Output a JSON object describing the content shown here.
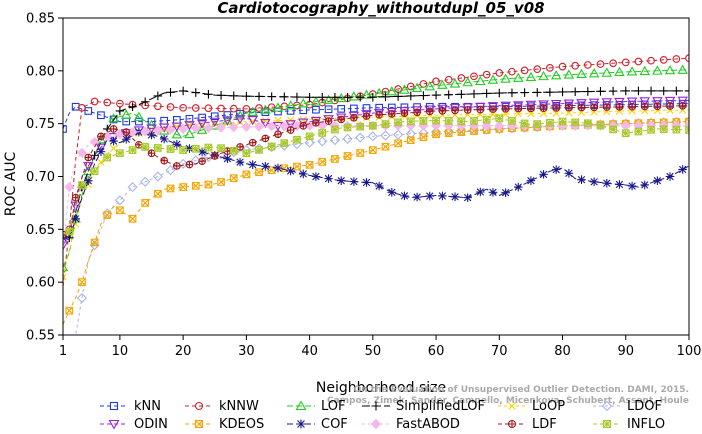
{
  "chart_data": {
    "type": "line",
    "title": "Cardiotocography_withoutdupl_05_v08",
    "xlabel": "Neighborhood size",
    "ylabel": "ROC AUC",
    "xlim": [
      1,
      100
    ],
    "ylim": [
      0.55,
      0.85
    ],
    "xticks": [
      1,
      10,
      20,
      30,
      40,
      50,
      60,
      70,
      80,
      90,
      100
    ],
    "yticks": [
      0.55,
      0.6,
      0.65,
      0.7,
      0.75,
      0.8,
      0.85
    ],
    "xtick_labels": [
      "1",
      "10",
      "20",
      "30",
      "40",
      "50",
      "60",
      "70",
      "80",
      "90",
      "100"
    ],
    "ytick_labels": [
      "0.55",
      "0.60",
      "0.65",
      "0.70",
      "0.75",
      "0.80",
      "0.85"
    ],
    "grid": false,
    "legend_position": "bottom",
    "watermark": [
      "Campos, Zimek, Sander, Campello, Micenkova, Schubert, Assent, Houle",
      "On the Evaluation of Unsupervised Outlier Detection. DAMI, 2015."
    ],
    "series": [
      {
        "name": "kNN",
        "color": "#1f3ad8",
        "marker": "square",
        "dash": "4,3",
        "points": [
          [
            1,
            0.745
          ],
          [
            2,
            0.76
          ],
          [
            3,
            0.766
          ],
          [
            5,
            0.762
          ],
          [
            8,
            0.756
          ],
          [
            10,
            0.752
          ],
          [
            15,
            0.752
          ],
          [
            20,
            0.754
          ],
          [
            30,
            0.76
          ],
          [
            40,
            0.763
          ],
          [
            50,
            0.765
          ],
          [
            60,
            0.766
          ],
          [
            70,
            0.766
          ],
          [
            80,
            0.767
          ],
          [
            90,
            0.768
          ],
          [
            100,
            0.769
          ]
        ]
      },
      {
        "name": "kNNW",
        "color": "#d0202a",
        "marker": "circle",
        "dash": "4,3",
        "points": [
          [
            1,
            0.596
          ],
          [
            2,
            0.65
          ],
          [
            3,
            0.715
          ],
          [
            4,
            0.765
          ],
          [
            6,
            0.771
          ],
          [
            8,
            0.77
          ],
          [
            12,
            0.768
          ],
          [
            20,
            0.765
          ],
          [
            30,
            0.764
          ],
          [
            40,
            0.768
          ],
          [
            50,
            0.778
          ],
          [
            60,
            0.79
          ],
          [
            70,
            0.798
          ],
          [
            80,
            0.804
          ],
          [
            90,
            0.808
          ],
          [
            100,
            0.812
          ]
        ]
      },
      {
        "name": "LOF",
        "color": "#22cc22",
        "marker": "triangle",
        "dash": "6,3",
        "points": [
          [
            1,
            0.614
          ],
          [
            2,
            0.628
          ],
          [
            3,
            0.66
          ],
          [
            5,
            0.705
          ],
          [
            7,
            0.735
          ],
          [
            9,
            0.755
          ],
          [
            12,
            0.76
          ],
          [
            16,
            0.745
          ],
          [
            20,
            0.738
          ],
          [
            25,
            0.748
          ],
          [
            30,
            0.76
          ],
          [
            40,
            0.77
          ],
          [
            50,
            0.778
          ],
          [
            60,
            0.786
          ],
          [
            70,
            0.792
          ],
          [
            80,
            0.796
          ],
          [
            90,
            0.799
          ],
          [
            100,
            0.801
          ]
        ]
      },
      {
        "name": "SimplifiedLOF",
        "color": "#000000",
        "marker": "plus",
        "dash": "8,3",
        "points": [
          [
            1,
            0.645
          ],
          [
            2,
            0.642
          ],
          [
            4,
            0.69
          ],
          [
            6,
            0.72
          ],
          [
            8,
            0.745
          ],
          [
            10,
            0.762
          ],
          [
            13,
            0.768
          ],
          [
            17,
            0.779
          ],
          [
            20,
            0.781
          ],
          [
            25,
            0.777
          ],
          [
            30,
            0.776
          ],
          [
            40,
            0.775
          ],
          [
            50,
            0.775
          ],
          [
            60,
            0.777
          ],
          [
            70,
            0.779
          ],
          [
            80,
            0.78
          ],
          [
            90,
            0.781
          ],
          [
            100,
            0.781
          ]
        ]
      },
      {
        "name": "LoOP",
        "color": "#ffd200",
        "marker": "x",
        "dash": "3,3",
        "points": [
          [
            1,
            0.605
          ],
          [
            2,
            0.63
          ],
          [
            4,
            0.68
          ],
          [
            6,
            0.705
          ],
          [
            8,
            0.722
          ],
          [
            12,
            0.74
          ],
          [
            20,
            0.748
          ],
          [
            30,
            0.752
          ],
          [
            40,
            0.754
          ],
          [
            50,
            0.756
          ],
          [
            60,
            0.758
          ],
          [
            70,
            0.759
          ],
          [
            80,
            0.76
          ],
          [
            90,
            0.762
          ],
          [
            100,
            0.763
          ]
        ]
      },
      {
        "name": "LDOF",
        "color": "#aab4e8",
        "marker": "diamond",
        "dash": "3,3",
        "points": [
          [
            1,
            0.54
          ],
          [
            3,
            0.55
          ],
          [
            5,
            0.62
          ],
          [
            8,
            0.665
          ],
          [
            12,
            0.69
          ],
          [
            16,
            0.7
          ],
          [
            20,
            0.712
          ],
          [
            25,
            0.72
          ],
          [
            30,
            0.725
          ],
          [
            40,
            0.732
          ],
          [
            50,
            0.738
          ],
          [
            60,
            0.742
          ],
          [
            70,
            0.745
          ],
          [
            80,
            0.748
          ],
          [
            90,
            0.75
          ],
          [
            100,
            0.752
          ]
        ]
      },
      {
        "name": "ODIN",
        "color": "#9a22d8",
        "marker": "triangle-down",
        "dash": "4,3",
        "points": [
          [
            1,
            0.635
          ],
          [
            2,
            0.645
          ],
          [
            4,
            0.7
          ],
          [
            6,
            0.72
          ],
          [
            8,
            0.735
          ],
          [
            10,
            0.74
          ],
          [
            14,
            0.745
          ],
          [
            20,
            0.748
          ],
          [
            25,
            0.752
          ],
          [
            30,
            0.755
          ],
          [
            35,
            0.748
          ],
          [
            40,
            0.752
          ],
          [
            50,
            0.76
          ],
          [
            60,
            0.764
          ],
          [
            70,
            0.767
          ],
          [
            80,
            0.769
          ],
          [
            90,
            0.771
          ],
          [
            100,
            0.772
          ]
        ]
      },
      {
        "name": "KDEOS",
        "color": "#f5a500",
        "marker": "square-x",
        "dash": "4,3",
        "points": [
          [
            1,
            0.56
          ],
          [
            2,
            0.573
          ],
          [
            3,
            0.585
          ],
          [
            4,
            0.6
          ],
          [
            5,
            0.62
          ],
          [
            7,
            0.655
          ],
          [
            9,
            0.672
          ],
          [
            12,
            0.66
          ],
          [
            14,
            0.675
          ],
          [
            17,
            0.688
          ],
          [
            20,
            0.69
          ],
          [
            25,
            0.693
          ],
          [
            30,
            0.702
          ],
          [
            35,
            0.707
          ],
          [
            40,
            0.711
          ],
          [
            45,
            0.718
          ],
          [
            50,
            0.725
          ],
          [
            55,
            0.733
          ],
          [
            60,
            0.74
          ],
          [
            70,
            0.745
          ],
          [
            80,
            0.748
          ],
          [
            90,
            0.75
          ],
          [
            100,
            0.752
          ]
        ]
      },
      {
        "name": "COF",
        "color": "#1a1a8c",
        "marker": "star",
        "dash": "6,3",
        "points": [
          [
            1,
            0.642
          ],
          [
            2,
            0.64
          ],
          [
            4,
            0.68
          ],
          [
            6,
            0.712
          ],
          [
            8,
            0.735
          ],
          [
            10,
            0.732
          ],
          [
            13,
            0.742
          ],
          [
            16,
            0.738
          ],
          [
            20,
            0.728
          ],
          [
            25,
            0.72
          ],
          [
            30,
            0.712
          ],
          [
            35,
            0.708
          ],
          [
            40,
            0.701
          ],
          [
            45,
            0.696
          ],
          [
            50,
            0.694
          ],
          [
            53,
            0.685
          ],
          [
            56,
            0.68
          ],
          [
            60,
            0.682
          ],
          [
            65,
            0.68
          ],
          [
            68,
            0.688
          ],
          [
            70,
            0.682
          ],
          [
            73,
            0.69
          ],
          [
            75,
            0.696
          ],
          [
            78,
            0.705
          ],
          [
            80,
            0.708
          ],
          [
            82,
            0.698
          ],
          [
            85,
            0.695
          ],
          [
            88,
            0.693
          ],
          [
            90,
            0.692
          ],
          [
            92,
            0.69
          ],
          [
            95,
            0.696
          ],
          [
            97,
            0.7
          ],
          [
            100,
            0.71
          ]
        ]
      },
      {
        "name": "FastABOD",
        "color": "#f4b8ea",
        "marker": "diamond-filled",
        "dash": "3,3",
        "points": [
          [
            1,
            0.63
          ],
          [
            2,
            0.69
          ],
          [
            3,
            0.715
          ],
          [
            5,
            0.73
          ],
          [
            8,
            0.738
          ],
          [
            12,
            0.742
          ],
          [
            20,
            0.745
          ],
          [
            30,
            0.747
          ],
          [
            40,
            0.748
          ],
          [
            50,
            0.748
          ],
          [
            60,
            0.748
          ],
          [
            70,
            0.748
          ],
          [
            80,
            0.748
          ],
          [
            90,
            0.748
          ],
          [
            100,
            0.748
          ]
        ]
      },
      {
        "name": "LDF",
        "color": "#a01818",
        "marker": "circle-plus",
        "dash": "4,3",
        "points": [
          [
            1,
            0.645
          ],
          [
            2,
            0.645
          ],
          [
            3,
            0.68
          ],
          [
            5,
            0.718
          ],
          [
            7,
            0.738
          ],
          [
            9,
            0.745
          ],
          [
            11,
            0.742
          ],
          [
            13,
            0.73
          ],
          [
            15,
            0.722
          ],
          [
            17,
            0.715
          ],
          [
            19,
            0.71
          ],
          [
            22,
            0.712
          ],
          [
            26,
            0.722
          ],
          [
            30,
            0.73
          ],
          [
            35,
            0.74
          ],
          [
            40,
            0.75
          ],
          [
            50,
            0.758
          ],
          [
            60,
            0.762
          ],
          [
            70,
            0.764
          ],
          [
            80,
            0.765
          ],
          [
            90,
            0.766
          ],
          [
            100,
            0.767
          ]
        ]
      },
      {
        "name": "INFLO",
        "color": "#a8c828",
        "marker": "square-star",
        "dash": "4,3",
        "points": [
          [
            1,
            0.645
          ],
          [
            2,
            0.648
          ],
          [
            4,
            0.692
          ],
          [
            6,
            0.705
          ],
          [
            8,
            0.718
          ],
          [
            10,
            0.722
          ],
          [
            14,
            0.728
          ],
          [
            20,
            0.725
          ],
          [
            25,
            0.728
          ],
          [
            30,
            0.722
          ],
          [
            35,
            0.73
          ],
          [
            40,
            0.738
          ],
          [
            45,
            0.746
          ],
          [
            50,
            0.748
          ],
          [
            55,
            0.752
          ],
          [
            60,
            0.753
          ],
          [
            65,
            0.752
          ],
          [
            70,
            0.755
          ],
          [
            75,
            0.749
          ],
          [
            80,
            0.752
          ],
          [
            85,
            0.75
          ],
          [
            90,
            0.741
          ],
          [
            95,
            0.745
          ],
          [
            100,
            0.744
          ]
        ]
      }
    ]
  }
}
